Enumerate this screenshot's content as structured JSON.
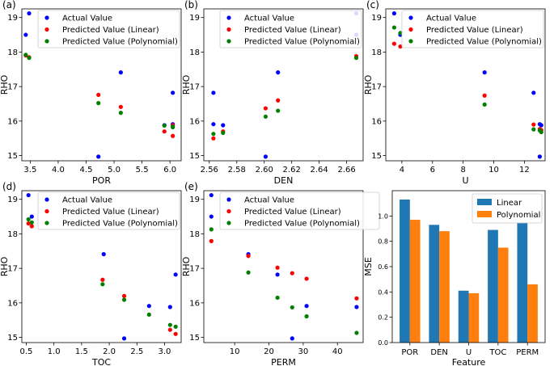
{
  "colors": {
    "actual": "#0000ff",
    "linear": "#ff0000",
    "poly": "#008000",
    "bar_linear": "#1f77b4",
    "bar_poly": "#ff7f0e"
  },
  "chart_data": [
    {
      "type": "scatter",
      "panel_label": "(a)",
      "xlabel": "POR",
      "ylabel": "RHO",
      "xlim": [
        3.35,
        6.2
      ],
      "ylim": [
        14.85,
        19.25
      ],
      "xticks": [
        3.5,
        4.0,
        4.5,
        5.0,
        5.5,
        6.0
      ],
      "xtick_labels": [
        "3.5",
        "4.0",
        "4.5",
        "5.0",
        "5.5",
        "6.0"
      ],
      "yticks": [
        15,
        16,
        17,
        18,
        19
      ],
      "ytick_labels": [
        "15",
        "16",
        "17",
        "18",
        "19"
      ],
      "legend": [
        "Actual Value",
        "Predicted Value (Linear)",
        "Predicted Value (Polynomial)"
      ],
      "series": [
        {
          "name": "Actual Value",
          "x": [
            3.42,
            3.48,
            4.72,
            5.12,
            5.9,
            6.05,
            6.05
          ],
          "y": [
            18.5,
            19.12,
            14.97,
            17.41,
            15.88,
            16.82,
            15.91
          ]
        },
        {
          "name": "Predicted Value (Linear)",
          "x": [
            3.42,
            3.48,
            4.72,
            5.12,
            5.9,
            6.05,
            6.05
          ],
          "y": [
            17.9,
            17.85,
            16.76,
            16.41,
            15.7,
            15.88,
            15.57
          ]
        },
        {
          "name": "Predicted Value (Polynomial)",
          "x": [
            3.42,
            3.48,
            4.72,
            5.12,
            5.9,
            6.05,
            6.05
          ],
          "y": [
            17.92,
            17.83,
            16.52,
            16.24,
            15.87,
            15.82,
            15.84
          ]
        }
      ]
    },
    {
      "type": "scatter",
      "panel_label": "(b)",
      "xlabel": "DEN",
      "ylabel": "RHO",
      "xlim": [
        2.556,
        2.672
      ],
      "ylim": [
        14.85,
        19.25
      ],
      "xticks": [
        2.56,
        2.58,
        2.6,
        2.62,
        2.64,
        2.66
      ],
      "xtick_labels": [
        "2.56",
        "2.58",
        "2.60",
        "2.62",
        "2.64",
        "2.66"
      ],
      "yticks": [
        15,
        16,
        17,
        18,
        19
      ],
      "ytick_labels": [
        "15",
        "16",
        "17",
        "18",
        "19"
      ],
      "legend": [
        "Actual Value",
        "Predicted Value (Linear)",
        "Predicted Value (Polynomial)"
      ],
      "series": [
        {
          "name": "Actual Value",
          "x": [
            2.563,
            2.563,
            2.57,
            2.601,
            2.61,
            2.667,
            2.667
          ],
          "y": [
            16.82,
            15.91,
            15.88,
            14.97,
            17.41,
            18.5,
            19.12
          ]
        },
        {
          "name": "Predicted Value (Linear)",
          "x": [
            2.563,
            2.57,
            2.601,
            2.61,
            2.667
          ],
          "y": [
            15.5,
            15.7,
            16.37,
            16.6,
            17.88
          ]
        },
        {
          "name": "Predicted Value (Polynomial)",
          "x": [
            2.563,
            2.57,
            2.601,
            2.61,
            2.667
          ],
          "y": [
            15.63,
            15.66,
            16.13,
            16.3,
            17.83
          ]
        }
      ]
    },
    {
      "type": "scatter",
      "panel_label": "(c)",
      "xlabel": "U",
      "ylabel": "RHO",
      "xlim": [
        2.95,
        13.35
      ],
      "ylim": [
        14.85,
        19.25
      ],
      "xticks": [
        4,
        6,
        8,
        10,
        12
      ],
      "xtick_labels": [
        "4",
        "6",
        "8",
        "10",
        "12"
      ],
      "yticks": [
        15,
        16,
        17,
        18,
        19
      ],
      "ytick_labels": [
        "15",
        "16",
        "17",
        "18",
        "19"
      ],
      "legend": [
        "Actual Value",
        "Predicted Value (Linear)",
        "Predicted Value (Polynomial)"
      ],
      "series": [
        {
          "name": "Actual Value",
          "x": [
            3.5,
            3.9,
            9.4,
            12.6,
            13.0,
            13.1,
            13.0
          ],
          "y": [
            19.12,
            18.5,
            17.41,
            16.82,
            15.91,
            15.88,
            14.97
          ]
        },
        {
          "name": "Predicted Value (Linear)",
          "x": [
            3.5,
            3.9,
            9.4,
            12.6,
            13.0,
            13.1
          ],
          "y": [
            18.24,
            18.16,
            16.74,
            15.9,
            15.77,
            15.74
          ]
        },
        {
          "name": "Predicted Value (Polynomial)",
          "x": [
            3.5,
            3.9,
            9.4,
            12.6,
            13.0,
            13.1
          ],
          "y": [
            18.71,
            18.55,
            16.48,
            15.76,
            15.73,
            15.68
          ]
        }
      ]
    },
    {
      "type": "scatter",
      "panel_label": "(d)",
      "xlabel": "TOC",
      "ylabel": "RHO",
      "xlim": [
        0.42,
        3.3
      ],
      "ylim": [
        14.85,
        19.25
      ],
      "xticks": [
        0.5,
        1.0,
        1.5,
        2.0,
        2.5,
        3.0
      ],
      "xtick_labels": [
        "0.5",
        "1.0",
        "1.5",
        "2.0",
        "2.5",
        "3.0"
      ],
      "yticks": [
        15,
        16,
        17,
        18,
        19
      ],
      "ytick_labels": [
        "15",
        "16",
        "17",
        "18",
        "19"
      ],
      "legend": [
        "Actual Value",
        "Predicted Value (Linear)",
        "Predicted Value (Polynomial)"
      ],
      "series": [
        {
          "name": "Actual Value",
          "x": [
            0.54,
            0.6,
            1.9,
            2.27,
            2.72,
            3.1,
            3.2
          ],
          "y": [
            19.12,
            18.5,
            17.41,
            14.97,
            15.91,
            15.88,
            16.82
          ]
        },
        {
          "name": "Predicted Value (Linear)",
          "x": [
            0.54,
            0.6,
            1.88,
            2.27,
            3.1,
            3.2
          ],
          "y": [
            18.3,
            18.22,
            16.67,
            16.2,
            15.22,
            15.1
          ]
        },
        {
          "name": "Predicted Value (Polynomial)",
          "x": [
            0.54,
            0.6,
            1.88,
            2.27,
            2.72,
            3.1,
            3.2
          ],
          "y": [
            18.42,
            18.33,
            16.54,
            16.09,
            15.66,
            15.36,
            15.31
          ]
        }
      ]
    },
    {
      "type": "scatter",
      "panel_label": "(e)",
      "xlabel": "PERM",
      "ylabel": "RHO",
      "xlim": [
        1.0,
        47.5
      ],
      "ylim": [
        14.85,
        19.25
      ],
      "xticks": [
        10,
        20,
        30,
        40
      ],
      "xtick_labels": [
        "10",
        "20",
        "30",
        "40"
      ],
      "yticks": [
        15,
        16,
        17,
        18,
        19
      ],
      "ytick_labels": [
        "15",
        "16",
        "17",
        "18",
        "19"
      ],
      "legend": [
        "Actual Value",
        "Predicted Value (Linear)",
        "Predicted Value (Polynomial)"
      ],
      "series": [
        {
          "name": "Actual Value",
          "x": [
            3.2,
            3.2,
            14.0,
            22.5,
            26.8,
            31.0,
            45.6
          ],
          "y": [
            19.12,
            18.5,
            17.41,
            16.82,
            14.97,
            15.91,
            15.88
          ]
        },
        {
          "name": "Predicted Value (Linear)",
          "x": [
            3.2,
            14.0,
            22.5,
            26.8,
            31.0,
            45.6
          ],
          "y": [
            17.79,
            17.36,
            17.02,
            16.86,
            16.7,
            16.13
          ]
        },
        {
          "name": "Predicted Value (Polynomial)",
          "x": [
            3.2,
            14.0,
            22.5,
            26.8,
            31.0,
            45.6
          ],
          "y": [
            18.13,
            16.88,
            16.15,
            15.87,
            15.61,
            15.13
          ]
        }
      ]
    },
    {
      "type": "bar",
      "xlabel": "Feature",
      "ylabel": "MSE",
      "categories": [
        "POR",
        "DEN",
        "U",
        "TOC",
        "PERM"
      ],
      "ylim": [
        0,
        1.2
      ],
      "yticks": [
        0.0,
        0.2,
        0.4,
        0.6,
        0.8,
        1.0
      ],
      "ytick_labels": [
        "0.0",
        "0.2",
        "0.4",
        "0.6",
        "0.8",
        "1.0"
      ],
      "legend": [
        "Linear",
        "Polynomial"
      ],
      "series": [
        {
          "name": "Linear",
          "values": [
            1.13,
            0.93,
            0.41,
            0.89,
            0.95
          ]
        },
        {
          "name": "Polynomial",
          "values": [
            0.97,
            0.88,
            0.39,
            0.75,
            0.46
          ]
        }
      ]
    }
  ]
}
